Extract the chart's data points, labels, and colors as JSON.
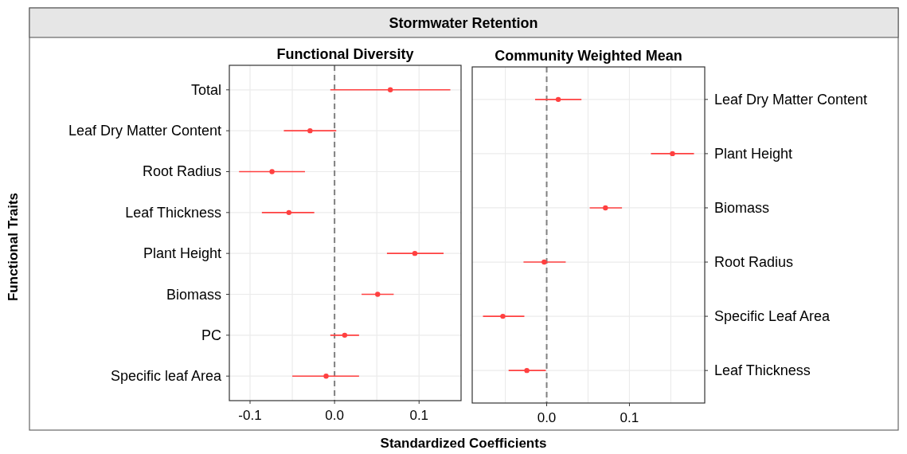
{
  "chart_data": [
    {
      "type": "scatter",
      "orientation": "horizontal",
      "title": "Functional Diversity",
      "xlabel": "Standardized Coefficients",
      "ylabel": "Functional Traits",
      "annotations": [
        "Stormwater Retention"
      ],
      "categories": [
        "Total",
        "Leaf Dry Matter Content",
        "Root Radius",
        "Leaf Thickness",
        "Plant Height",
        "Biomass",
        "PC",
        "Specific leaf Area"
      ],
      "series": [
        {
          "color": "#ff4040",
          "values": [
            0.066,
            -0.029,
            -0.074,
            -0.054,
            0.095,
            0.051,
            0.012,
            -0.01
          ],
          "errors": [
            [
              -0.005,
              0.137
            ],
            [
              -0.06,
              0.002
            ],
            [
              -0.113,
              -0.035
            ],
            [
              -0.086,
              -0.024
            ],
            [
              0.062,
              0.129
            ],
            [
              0.032,
              0.07
            ],
            [
              -0.005,
              0.029
            ],
            [
              -0.05,
              0.029
            ]
          ]
        }
      ],
      "xlim": [
        -0.1245,
        0.1497
      ],
      "xticks": [
        {
          "value": -0.1,
          "label": "-0.1"
        },
        {
          "value": -0.05,
          "label": null
        },
        {
          "value": 0,
          "label": "0.0"
        },
        {
          "value": 0.05,
          "label": null
        },
        {
          "value": 0.1,
          "label": "0.1"
        }
      ],
      "grid": true,
      "marker": "circle",
      "ref_lines": [
        {
          "axis": "x",
          "value": 0,
          "color": "#808080",
          "line_style": "dashed"
        }
      ]
    },
    {
      "type": "scatter",
      "orientation": "horizontal",
      "title": "Community Weighted Mean",
      "categories": [
        "Leaf Dry Matter Content",
        "Plant Height",
        "Biomass",
        "Root Radius",
        "Specific Leaf Area",
        "Leaf Thickness"
      ],
      "series": [
        {
          "color": "#ff4040",
          "values": [
            0.014,
            0.152,
            0.071,
            -0.003,
            -0.053,
            -0.024
          ],
          "errors": [
            [
              -0.014,
              0.042
            ],
            [
              0.126,
              0.178
            ],
            [
              0.052,
              0.091
            ],
            [
              -0.028,
              0.023
            ],
            [
              -0.077,
              -0.027
            ],
            [
              -0.046,
              -0.001
            ]
          ]
        }
      ],
      "xlim": [
        -0.09,
        0.191
      ],
      "xticks": [
        {
          "value": -0.05,
          "label": null
        },
        {
          "value": 0,
          "label": "0.0"
        },
        {
          "value": 0.05,
          "label": null
        },
        {
          "value": 0.1,
          "label": "0.1"
        },
        {
          "value": 0.15,
          "label": null
        }
      ],
      "grid": true,
      "marker": "circle",
      "ref_lines": [
        {
          "axis": "x",
          "value": 0,
          "color": "#808080",
          "line_style": "dashed"
        }
      ]
    }
  ]
}
